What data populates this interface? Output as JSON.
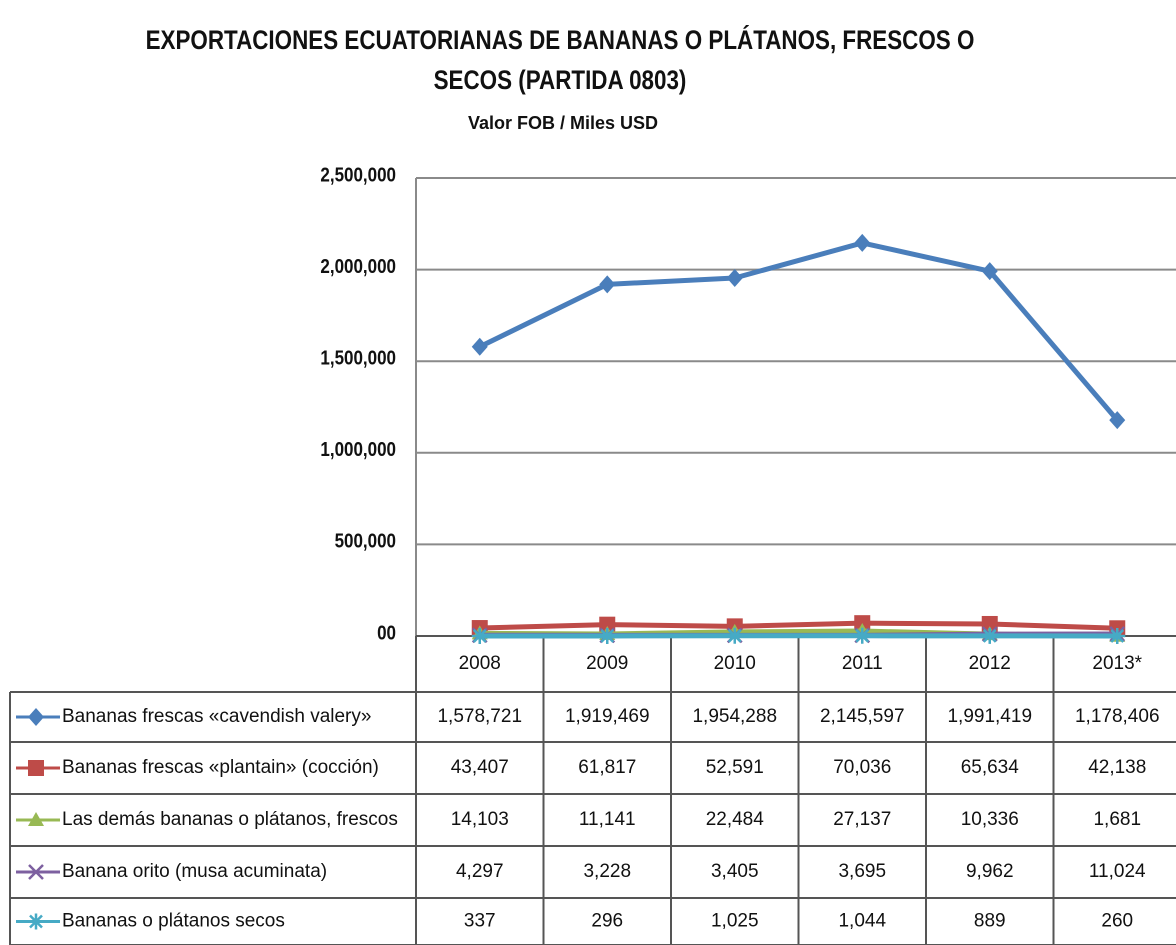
{
  "chart_data": {
    "type": "line",
    "title": "EXPORTACIONES ECUATORIANAS DE BANANAS O PLÁTANOS, FRESCOS O SECOS (PARTIDA 0803)",
    "subtitle": "Valor FOB / Miles USD",
    "categories": [
      "2008",
      "2009",
      "2010",
      "2011",
      "2012",
      "2013*"
    ],
    "ylim": [
      0,
      2500000
    ],
    "yticks": [
      {
        "value": 0,
        "label": "00"
      },
      {
        "value": 500000,
        "label": "500,000"
      },
      {
        "value": 1000000,
        "label": "1,000,000"
      },
      {
        "value": 1500000,
        "label": "1,500,000"
      },
      {
        "value": 2000000,
        "label": "2,000,000"
      },
      {
        "value": 2500000,
        "label": "2,500,000"
      }
    ],
    "grid": true,
    "series": [
      {
        "name": "Bananas frescas «cavendish valery»",
        "color": "#4a7ebb",
        "marker": "diamond",
        "values": [
          1578721,
          1919469,
          1954288,
          2145597,
          1991419,
          1178406
        ],
        "value_labels": [
          "1,578,721",
          "1,919,469",
          "1,954,288",
          "2,145,597",
          "1,991,419",
          "1,178,406"
        ]
      },
      {
        "name": "Bananas frescas «plantain» (cocción)",
        "color": "#be4b48",
        "marker": "square",
        "values": [
          43407,
          61817,
          52591,
          70036,
          65634,
          42138
        ],
        "value_labels": [
          "43,407",
          "61,817",
          "52,591",
          "70,036",
          "65,634",
          "42,138"
        ]
      },
      {
        "name": "Las demás bananas o plátanos, frescos",
        "color": "#98b954",
        "marker": "triangle",
        "values": [
          14103,
          11141,
          22484,
          27137,
          10336,
          1681
        ],
        "value_labels": [
          "14,103",
          "11,141",
          "22,484",
          "27,137",
          "10,336",
          "1,681"
        ]
      },
      {
        "name": "Banana orito (musa acuminata)",
        "color": "#7d60a0",
        "marker": "x",
        "values": [
          4297,
          3228,
          3405,
          3695,
          9962,
          11024
        ],
        "value_labels": [
          "4,297",
          "3,228",
          "3,405",
          "3,695",
          "9,962",
          "11,024"
        ]
      },
      {
        "name": "Bananas o plátanos secos",
        "color": "#46aac5",
        "marker": "star",
        "values": [
          337,
          296,
          1025,
          1044,
          889,
          260
        ],
        "value_labels": [
          "337",
          "296",
          "1,025",
          "1,044",
          "889",
          "260"
        ]
      }
    ]
  }
}
